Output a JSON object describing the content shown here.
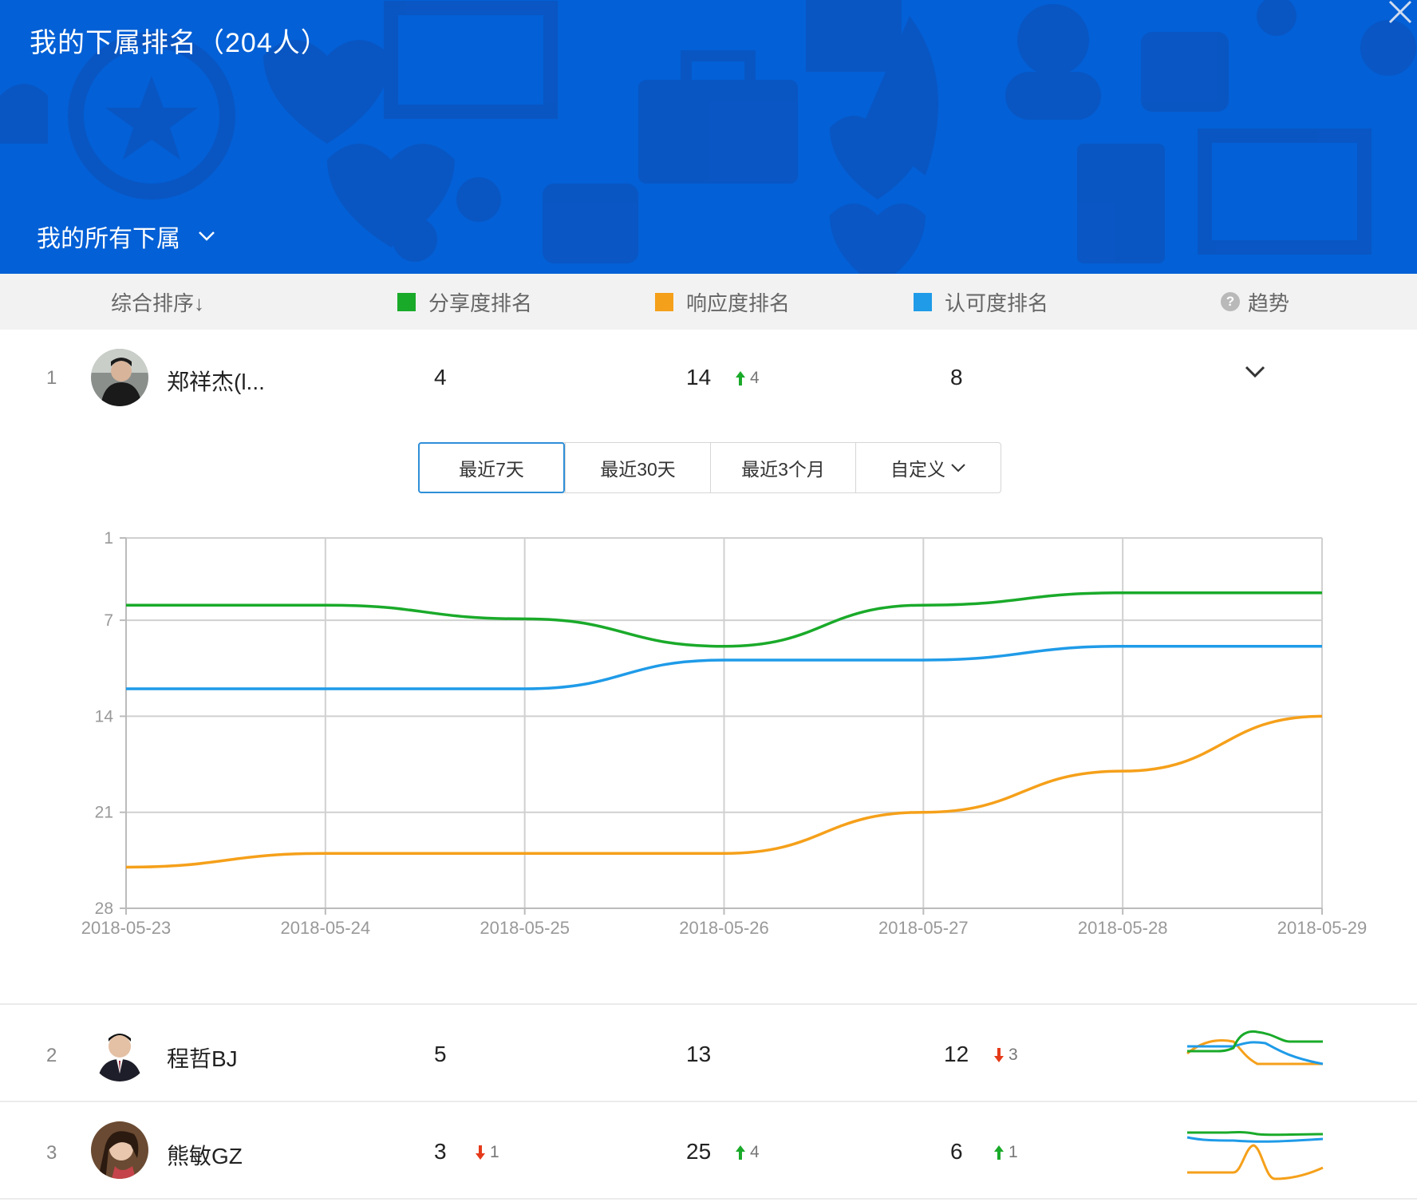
{
  "header": {
    "title": "我的下属排名（204人）",
    "filter_label": "我的所有下属",
    "bg_color": "#0360d6"
  },
  "columns": {
    "overall": "综合排序↓",
    "share": "分享度排名",
    "response": "响应度排名",
    "recognition": "认可度排名",
    "trend": "趋势",
    "share_color": "#1aaa2a",
    "response_color": "#f5a01a",
    "recognition_color": "#1f9be8"
  },
  "rows": [
    {
      "rank": "1",
      "name": "郑祥杰(l...",
      "share": "4",
      "share_change": "",
      "response": "14",
      "response_change": "4",
      "recognition": "8",
      "recognition_change": ""
    },
    {
      "rank": "2",
      "name": "程哲BJ",
      "share": "5",
      "share_change": "",
      "response": "13",
      "response_change": "",
      "recognition": "12",
      "recognition_change": "3"
    },
    {
      "rank": "3",
      "name": "熊敏GZ",
      "share": "3",
      "share_change": "1",
      "response": "25",
      "response_change": "4",
      "recognition": "6",
      "recognition_change": "1"
    }
  ],
  "range_tabs": [
    "最近7天",
    "最近30天",
    "最近3个月",
    "自定义"
  ],
  "chart_data": {
    "type": "line",
    "x": [
      "2018-05-23",
      "2018-05-24",
      "2018-05-25",
      "2018-05-26",
      "2018-05-27",
      "2018-05-28",
      "2018-05-29"
    ],
    "y_ticks": [
      1,
      7,
      14,
      21,
      28
    ],
    "ylim": [
      1,
      28
    ],
    "y_inverted": true,
    "grid": true,
    "series": [
      {
        "color": "#1aaa2a",
        "values": [
          5.9,
          5.9,
          6.9,
          8.9,
          5.9,
          5.0,
          5.0
        ]
      },
      {
        "color": "#1f9be8",
        "values": [
          12.0,
          12.0,
          12.0,
          9.9,
          9.9,
          8.9,
          8.9
        ]
      },
      {
        "color": "#f5a01a",
        "values": [
          25.0,
          24.0,
          24.0,
          24.0,
          21.0,
          18.0,
          14.0
        ]
      }
    ]
  }
}
